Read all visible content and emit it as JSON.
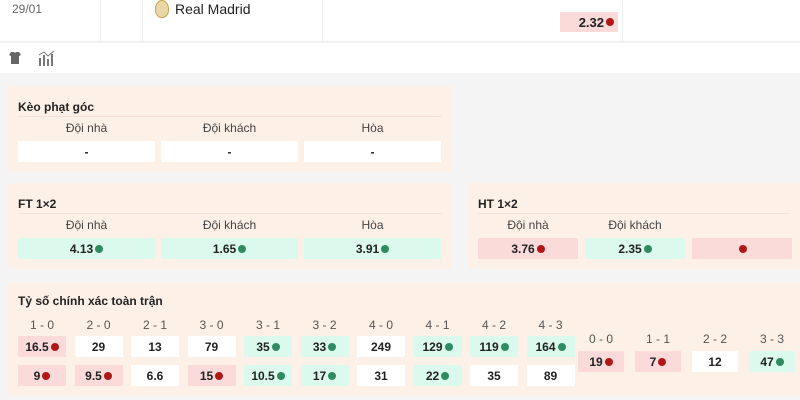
{
  "top": {
    "date": "29/01",
    "team": "Real Madrid",
    "odd": {
      "v": "2.32",
      "t": "dn"
    }
  },
  "icons": [
    "jersey-icon",
    "stats-chart-icon"
  ],
  "corner": {
    "title": "Kèo phạt góc",
    "labels": [
      "Đội nhà",
      "Đội khách",
      "Hòa"
    ],
    "values": [
      "-",
      "-",
      "-"
    ]
  },
  "ft": {
    "title": "FT 1×2",
    "labels": [
      "Đội nhà",
      "Đội khách",
      "Hòa"
    ],
    "values": [
      {
        "v": "4.13",
        "t": "up"
      },
      {
        "v": "1.65",
        "t": "up"
      },
      {
        "v": "3.91",
        "t": "up"
      }
    ]
  },
  "ht": {
    "title": "HT 1×2",
    "labels": [
      "Đội nhà",
      "Đội khách"
    ],
    "values": [
      {
        "v": "3.76",
        "t": "dn"
      },
      {
        "v": "2.35",
        "t": "up"
      },
      {
        "v": "",
        "t": "dn"
      }
    ]
  },
  "score": {
    "title": "Tỷ số chính xác toàn trận",
    "home": [
      {
        "s": "1 - 0",
        "a": {
          "v": "16.5",
          "t": "dn"
        },
        "b": {
          "v": "9",
          "t": "dn"
        }
      },
      {
        "s": "2 - 0",
        "a": {
          "v": "29",
          "t": ""
        },
        "b": {
          "v": "9.5",
          "t": "dn"
        }
      },
      {
        "s": "2 - 1",
        "a": {
          "v": "13",
          "t": ""
        },
        "b": {
          "v": "6.6",
          "t": ""
        }
      },
      {
        "s": "3 - 0",
        "a": {
          "v": "79",
          "t": ""
        },
        "b": {
          "v": "15",
          "t": "dn"
        }
      },
      {
        "s": "3 - 1",
        "a": {
          "v": "35",
          "t": "up"
        },
        "b": {
          "v": "10.5",
          "t": "up"
        }
      },
      {
        "s": "3 - 2",
        "a": {
          "v": "33",
          "t": "up"
        },
        "b": {
          "v": "17",
          "t": "up"
        }
      },
      {
        "s": "4 - 0",
        "a": {
          "v": "249",
          "t": ""
        },
        "b": {
          "v": "31",
          "t": ""
        }
      },
      {
        "s": "4 - 1",
        "a": {
          "v": "129",
          "t": "up"
        },
        "b": {
          "v": "22",
          "t": "up"
        }
      },
      {
        "s": "4 - 2",
        "a": {
          "v": "119",
          "t": "up"
        },
        "b": {
          "v": "35",
          "t": ""
        }
      },
      {
        "s": "4 - 3",
        "a": {
          "v": "164",
          "t": "up"
        },
        "b": {
          "v": "89",
          "t": ""
        }
      }
    ],
    "draw": [
      {
        "s": "0 - 0",
        "a": {
          "v": "19",
          "t": "dn"
        }
      },
      {
        "s": "1 - 1",
        "a": {
          "v": "7",
          "t": "dn"
        }
      },
      {
        "s": "2 - 2",
        "a": {
          "v": "12",
          "t": ""
        }
      },
      {
        "s": "3 - 3",
        "a": {
          "v": "47",
          "t": "up"
        }
      }
    ]
  }
}
